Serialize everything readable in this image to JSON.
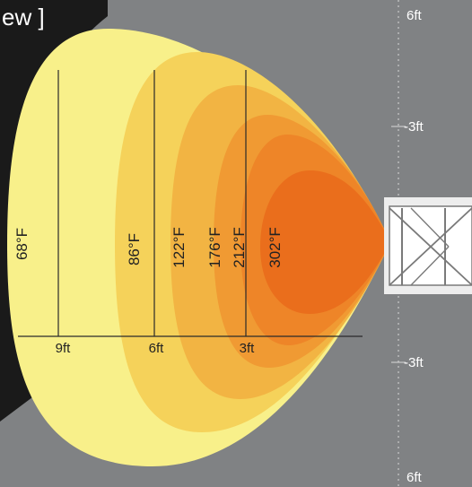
{
  "header": {
    "title_fragment": "ew ]"
  },
  "temperature_zones": [
    {
      "label": "68°F",
      "color": "#F8F08A"
    },
    {
      "label": "86°F",
      "color": "#F5D25A"
    },
    {
      "label": "122°F",
      "color": "#F2B443"
    },
    {
      "label": "176°F",
      "color": "#F09A33"
    },
    {
      "label": "212°F",
      "color": "#EE8528"
    },
    {
      "label": "302°F",
      "color": "#EA6E1C"
    }
  ],
  "horizontal_scale": {
    "ticks": [
      "9ft",
      "6ft",
      "3ft"
    ]
  },
  "vertical_scale": {
    "ticks": [
      "6ft",
      "-3ft",
      "-3ft",
      "6ft"
    ]
  },
  "colors": {
    "background_gray": "#808284",
    "dark_corner": "#1A1A1A",
    "scale_text": "#FFFFFF",
    "heater_frame": "#EDEDED"
  }
}
